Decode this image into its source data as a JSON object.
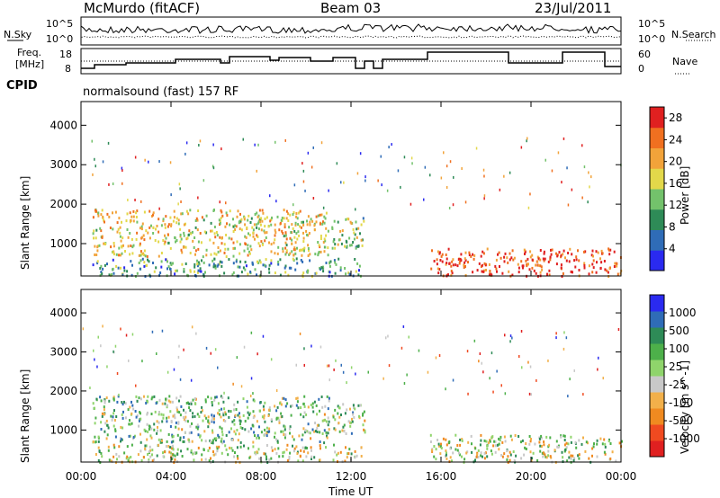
{
  "header": {
    "station": "McMurdo (fitACF)",
    "beam": "Beam 03",
    "date": "23/Jul/2011"
  },
  "top_panels": {
    "nsky_label": "N.Sky",
    "nsearch_label": "N.Search",
    "freq_label_1": "Freq.",
    "freq_label_2": "[MHz]",
    "nave_label": "Nave",
    "cpid_label": "CPID",
    "cpid_value": "normalsound (fast) 157 RF",
    "noise_ticks": [
      "10^5",
      "10^0"
    ],
    "freq_ticks": [
      "18",
      "8"
    ],
    "nave_ticks": [
      "60",
      "0"
    ]
  },
  "colors": {
    "power_scale": [
      "#2a2af0",
      "#2f6cb7",
      "#2e8b57",
      "#73c26b",
      "#e3d84a",
      "#f2a33a",
      "#f07020",
      "#e02020"
    ],
    "velocity_scale": [
      "#e02020",
      "#f04a20",
      "#f08a20",
      "#f2b04a",
      "#c8c8c8",
      "#8fd46b",
      "#4db04a",
      "#2e8b57",
      "#2f6cb7",
      "#2a2af0"
    ]
  },
  "chart_data": [
    {
      "type": "heatmap",
      "title": "",
      "xlabel": "Time UT",
      "ylabel": "Slant Range [km]",
      "x_ticks": [
        "00:00",
        "04:00",
        "08:00",
        "12:00",
        "16:00",
        "20:00",
        "00:00"
      ],
      "y_ticks": [
        "1000",
        "2000",
        "3000",
        "4000"
      ],
      "xlim": [
        0,
        24
      ],
      "ylim": [
        180,
        4600
      ],
      "colorbar": {
        "label": "Power [dB]",
        "ticks": [
          "4",
          "8",
          "12",
          "16",
          "20",
          "24",
          "28"
        ],
        "range": [
          0,
          30
        ]
      },
      "regions": [
        {
          "t0": 0.5,
          "t1": 11.0,
          "r0": 700,
          "r1": 1900,
          "value": 18
        },
        {
          "t0": 11.0,
          "t1": 12.6,
          "r0": 900,
          "r1": 1700,
          "value": 14
        },
        {
          "t0": 15.5,
          "t1": 24.0,
          "r0": 200,
          "r1": 900,
          "value": 26
        },
        {
          "t0": 0.5,
          "t1": 12.5,
          "r0": 200,
          "r1": 650,
          "value": 10
        }
      ]
    },
    {
      "type": "heatmap",
      "title": "",
      "xlabel": "Time UT",
      "ylabel": "Slant Range [km]",
      "x_ticks": [
        "00:00",
        "04:00",
        "08:00",
        "12:00",
        "16:00",
        "20:00",
        "00:00"
      ],
      "y_ticks": [
        "1000",
        "2000",
        "3000",
        "4000"
      ],
      "xlim": [
        0,
        24
      ],
      "ylim": [
        180,
        4600
      ],
      "colorbar": {
        "label": "Velocity [m s^-1]",
        "ticks": [
          "1000",
          "500",
          "100",
          "25",
          "-25",
          "-100",
          "-500",
          "-1000"
        ],
        "range": [
          -1200,
          1200
        ]
      },
      "regions": [
        {
          "t0": 0.5,
          "t1": 11.0,
          "r0": 700,
          "r1": 1900,
          "value": 200
        },
        {
          "t0": 11.0,
          "t1": 12.6,
          "r0": 900,
          "r1": 1700,
          "value": 100
        },
        {
          "t0": 15.5,
          "t1": 24.0,
          "r0": 200,
          "r1": 900,
          "value": 0
        },
        {
          "t0": 0.5,
          "t1": 12.5,
          "r0": 200,
          "r1": 650,
          "value": 0
        }
      ]
    }
  ]
}
